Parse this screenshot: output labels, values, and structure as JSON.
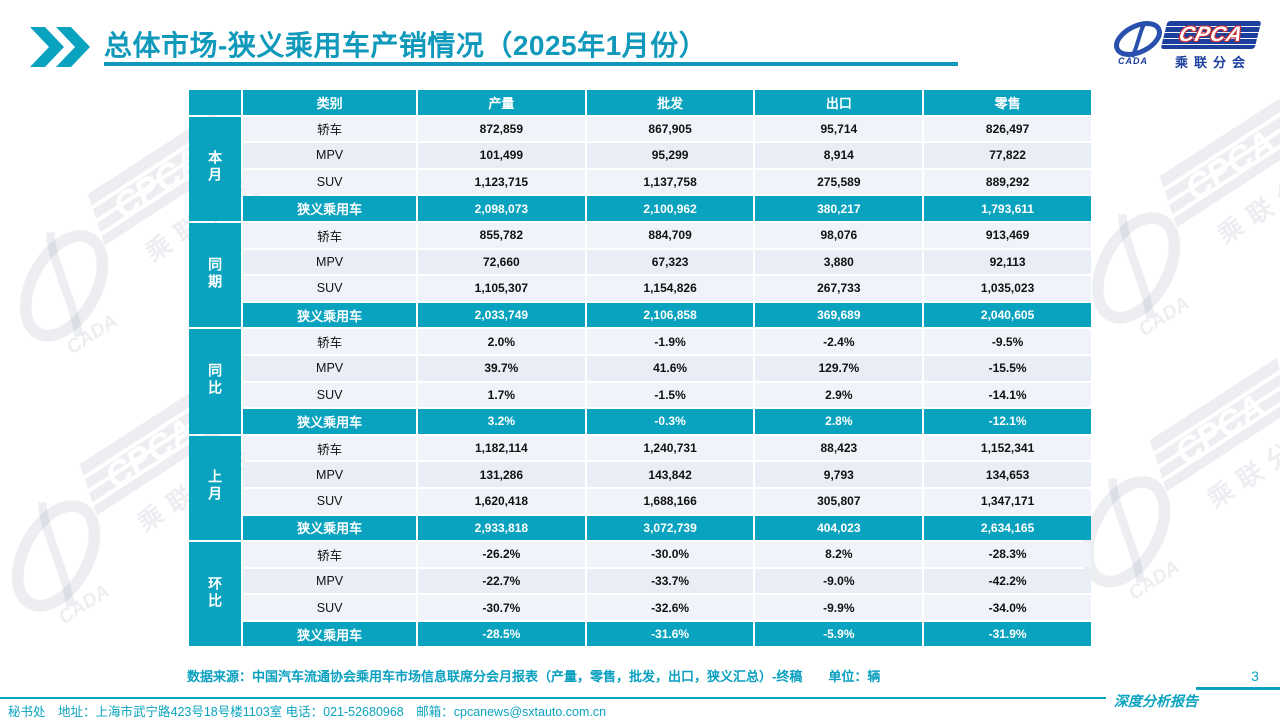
{
  "header": {
    "title": "总体市场-狭义乘用车产销情况（2025年1月份）"
  },
  "logo": {
    "cada": "CADA",
    "cpca": "CPCA",
    "cn_name": "乘联分会"
  },
  "watermark": {
    "cpca": "CPCA",
    "cada": "CADA",
    "cn_name": "乘联分会"
  },
  "table": {
    "headers": [
      "类别",
      "产量",
      "批发",
      "出口",
      "零售"
    ],
    "sections": [
      {
        "group": "本月",
        "rows": [
          [
            "轿车",
            "872,859",
            "867,905",
            "95,714",
            "826,497"
          ],
          [
            "MPV",
            "101,499",
            "95,299",
            "8,914",
            "77,822"
          ],
          [
            "SUV",
            "1,123,715",
            "1,137,758",
            "275,589",
            "889,292"
          ]
        ],
        "summary": [
          "狭义乘用车",
          "2,098,073",
          "2,100,962",
          "380,217",
          "1,793,611"
        ]
      },
      {
        "group": "同期",
        "rows": [
          [
            "轿车",
            "855,782",
            "884,709",
            "98,076",
            "913,469"
          ],
          [
            "MPV",
            "72,660",
            "67,323",
            "3,880",
            "92,113"
          ],
          [
            "SUV",
            "1,105,307",
            "1,154,826",
            "267,733",
            "1,035,023"
          ]
        ],
        "summary": [
          "狭义乘用车",
          "2,033,749",
          "2,106,858",
          "369,689",
          "2,040,605"
        ]
      },
      {
        "group": "同比",
        "rows": [
          [
            "轿车",
            "2.0%",
            "-1.9%",
            "-2.4%",
            "-9.5%"
          ],
          [
            "MPV",
            "39.7%",
            "41.6%",
            "129.7%",
            "-15.5%"
          ],
          [
            "SUV",
            "1.7%",
            "-1.5%",
            "2.9%",
            "-14.1%"
          ]
        ],
        "summary": [
          "狭义乘用车",
          "3.2%",
          "-0.3%",
          "2.8%",
          "-12.1%"
        ]
      },
      {
        "group": "上月",
        "rows": [
          [
            "轿车",
            "1,182,114",
            "1,240,731",
            "88,423",
            "1,152,341"
          ],
          [
            "MPV",
            "131,286",
            "143,842",
            "9,793",
            "134,653"
          ],
          [
            "SUV",
            "1,620,418",
            "1,688,166",
            "305,807",
            "1,347,171"
          ]
        ],
        "summary": [
          "狭义乘用车",
          "2,933,818",
          "3,072,739",
          "404,023",
          "2,634,165"
        ]
      },
      {
        "group": "环比",
        "rows": [
          [
            "轿车",
            "-26.2%",
            "-30.0%",
            "8.2%",
            "-28.3%"
          ],
          [
            "MPV",
            "-22.7%",
            "-33.7%",
            "-9.0%",
            "-42.2%"
          ],
          [
            "SUV",
            "-30.7%",
            "-32.6%",
            "-9.9%",
            "-34.0%"
          ]
        ],
        "summary": [
          "狭义乘用车",
          "-28.5%",
          "-31.6%",
          "-5.9%",
          "-31.9%"
        ]
      }
    ]
  },
  "source_note": "数据来源：中国汽车流通协会乘用车市场信息联席分会月报表（产量，零售，批发，出口，狭义汇总）-终稿　　单位：辆",
  "footer": {
    "contact": "秘书处　地址：上海市武宁路423号18号楼1103室 电话：021-52680968　邮箱：cpcanews@sxtauto.com.cn",
    "report_label": "深度分析报告",
    "page_number": "3"
  },
  "colors": {
    "teal": "#0AA3BF",
    "navy": "#1C3F9E",
    "row_light": "#F0F4FA",
    "row_dark": "#E9EEF6",
    "cpca_red": "#D03030"
  }
}
